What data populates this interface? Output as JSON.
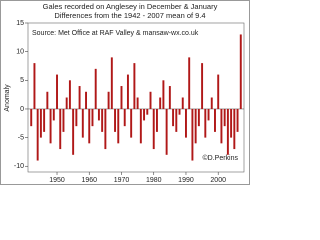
{
  "chart_data": {
    "type": "bar",
    "title": "Gales recorded on Anglesey in December & January",
    "subtitle": "Differences from the 1942 - 2007 mean of 9.4",
    "annotation": "Source: Met Office at RAF Valley & mansaw-wx.co.uk",
    "credit": "©D.Perkins",
    "y_label": "Anomaly",
    "color": "#b01818",
    "x": [
      1942,
      1943,
      1944,
      1945,
      1946,
      1947,
      1948,
      1949,
      1950,
      1951,
      1952,
      1953,
      1954,
      1955,
      1956,
      1957,
      1958,
      1959,
      1960,
      1961,
      1962,
      1963,
      1964,
      1965,
      1966,
      1967,
      1968,
      1969,
      1970,
      1971,
      1972,
      1973,
      1974,
      1975,
      1976,
      1977,
      1978,
      1979,
      1980,
      1981,
      1982,
      1983,
      1984,
      1985,
      1986,
      1987,
      1988,
      1989,
      1990,
      1991,
      1992,
      1993,
      1994,
      1995,
      1996,
      1997,
      1998,
      1999,
      2000,
      2001,
      2002,
      2003,
      2004,
      2005,
      2006,
      2007
    ],
    "values": [
      -3,
      8,
      -9,
      -5,
      -4,
      3,
      -6,
      -2,
      6,
      -7,
      -4,
      2,
      5,
      -8,
      -3,
      4,
      -5,
      3,
      -6,
      -3,
      7,
      -2,
      -4,
      -7,
      3,
      9,
      -4,
      -6,
      4,
      -3,
      6,
      -5,
      8,
      2,
      -6,
      -2,
      -1,
      3,
      -7,
      -4,
      2,
      5,
      -8,
      4,
      -3,
      -4,
      -1,
      2,
      -5,
      9,
      -9,
      -6,
      -3,
      8,
      -5,
      -2,
      2,
      -4,
      6,
      -6,
      -3,
      -8,
      -5,
      -7,
      -4,
      13
    ],
    "xlim": [
      1941,
      2008
    ],
    "xticks": [
      1950,
      1960,
      1970,
      1980,
      1990,
      2000
    ],
    "ylim": [
      -11,
      15
    ],
    "yticks": [
      -10,
      -5,
      0,
      5,
      10,
      15
    ]
  }
}
